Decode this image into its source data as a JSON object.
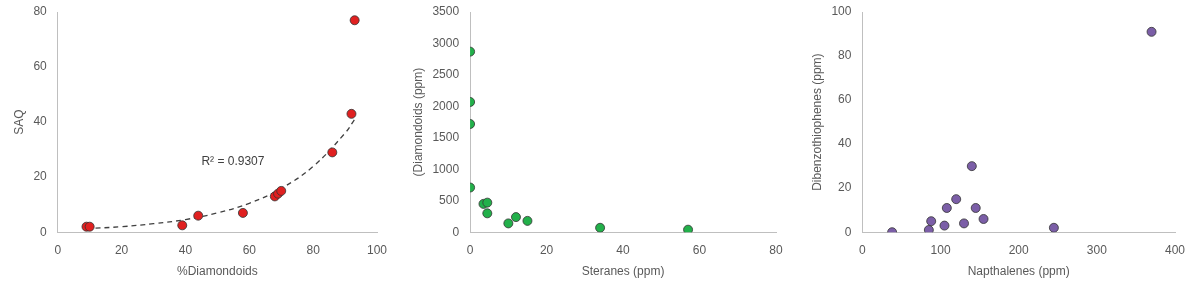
{
  "chart_data": [
    {
      "type": "scatter",
      "x_label": "%Diamondoids",
      "y_label": "SAQ",
      "xlim": [
        0,
        100
      ],
      "xticks": [
        0,
        20,
        40,
        60,
        80,
        100
      ],
      "ylim": [
        0,
        80
      ],
      "yticks": [
        0,
        20,
        40,
        60,
        80
      ],
      "grid": false,
      "annotation": "R² = 0.9307",
      "series": [
        {
          "color": "#e02020",
          "marker": "circle",
          "x": [
            9,
            10,
            39,
            44,
            58,
            68,
            69,
            70,
            86,
            92,
            93
          ],
          "values": [
            2,
            2,
            2.5,
            6,
            7,
            13,
            14,
            15,
            29,
            43,
            77
          ]
        },
        {
          "type": "line",
          "line_style": "dashed",
          "color": "#404040",
          "x": [
            9,
            20,
            30,
            40,
            50,
            60,
            70,
            80,
            90,
            93
          ],
          "values": [
            1.3,
            2.0,
            3.1,
            4.6,
            7.0,
            10.5,
            15.9,
            23.9,
            36,
            41
          ]
        }
      ]
    },
    {
      "type": "scatter",
      "x_label": "Steranes (ppm)",
      "y_label": "(Diamondoids (ppm)",
      "xlim": [
        0,
        80
      ],
      "xticks": [
        0,
        20,
        40,
        60,
        80
      ],
      "ylim": [
        0,
        3500
      ],
      "yticks": [
        0,
        500,
        1000,
        1500,
        2000,
        2500,
        3000,
        3500
      ],
      "grid": false,
      "series": [
        {
          "color": "#22b04a",
          "marker": "circle",
          "x": [
            0,
            0,
            0,
            0,
            3.5,
            4.5,
            4.5,
            10,
            12,
            15,
            34,
            57
          ],
          "values": [
            2870,
            2070,
            1720,
            710,
            450,
            470,
            300,
            140,
            240,
            180,
            70,
            40
          ]
        }
      ]
    },
    {
      "type": "scatter",
      "x_label": "Napthalenes (ppm)",
      "y_label": "Dibenzothiophenes (ppm)",
      "xlim": [
        0,
        400
      ],
      "xticks": [
        0,
        100,
        200,
        300,
        400
      ],
      "ylim": [
        0,
        100
      ],
      "yticks": [
        0,
        20,
        40,
        60,
        80,
        100
      ],
      "grid": false,
      "series": [
        {
          "color": "#7b5ea7",
          "marker": "circle",
          "x": [
            38,
            85,
            88,
            105,
            108,
            120,
            130,
            140,
            145,
            155,
            245,
            370
          ],
          "values": [
            0,
            1,
            5,
            3,
            11,
            15,
            4,
            30,
            11,
            6,
            2,
            91
          ]
        }
      ]
    }
  ]
}
